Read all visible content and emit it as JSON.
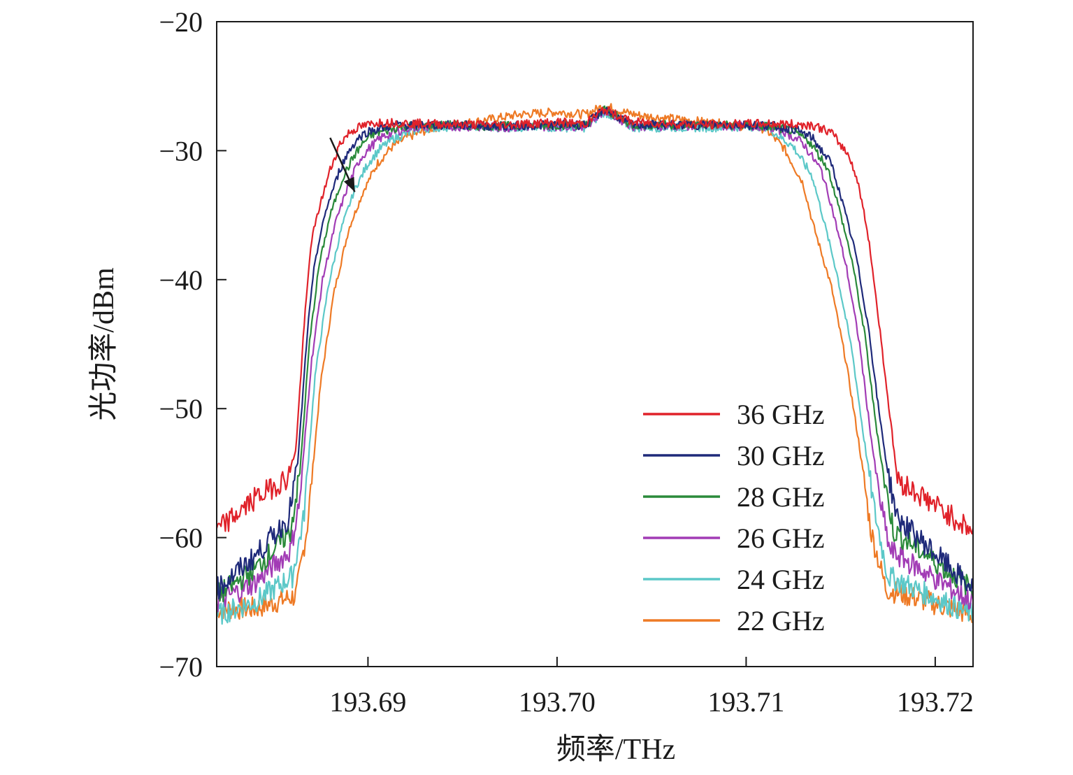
{
  "chart_data": {
    "type": "line",
    "title": "",
    "xlabel": "频率/THz",
    "ylabel": "光功率/dBm",
    "xlim": [
      193.682,
      193.722
    ],
    "ylim": [
      -70,
      -20
    ],
    "x_ticks": [
      193.69,
      193.7,
      193.71,
      193.72
    ],
    "x_tick_labels": [
      "193.69",
      "193.70",
      "193.71",
      "193.72"
    ],
    "y_ticks": [
      -70,
      -60,
      -50,
      -40,
      -30,
      -20
    ],
    "y_tick_labels": [
      "−70",
      "−60",
      "−50",
      "−40",
      "−30",
      "−20"
    ],
    "legend_position": "lower-right",
    "annotation": "arrow indicating decreasing bandwidth at the rising edge",
    "series": [
      {
        "name": "36 GHz",
        "color": "#e0222a",
        "x": [
          193.682,
          193.684,
          193.6858,
          193.6862,
          193.6866,
          193.687,
          193.6875,
          193.688,
          193.6885,
          193.689,
          193.6895,
          193.6905,
          193.6925,
          193.697,
          193.7,
          193.7015,
          193.7025,
          193.704,
          193.708,
          193.711,
          193.7135,
          193.7145,
          193.7155,
          193.716,
          193.7165,
          193.717,
          193.7174,
          193.7178,
          193.718,
          193.722
        ],
        "y": [
          -59.5,
          -57.0,
          -55.3,
          -53.0,
          -44.0,
          -37.0,
          -34.0,
          -31.5,
          -29.5,
          -28.6,
          -28.2,
          -27.8,
          -27.9,
          -28.0,
          -27.8,
          -27.9,
          -26.8,
          -27.8,
          -28.0,
          -27.9,
          -28.0,
          -28.6,
          -30.5,
          -33.0,
          -37.0,
          -43.0,
          -48.0,
          -53.0,
          -55.5,
          -59.5
        ]
      },
      {
        "name": "30 GHz",
        "color": "#1f2a7a",
        "x": [
          193.682,
          193.684,
          193.6858,
          193.6863,
          193.6868,
          193.6872,
          193.6878,
          193.6885,
          193.689,
          193.6895,
          193.69,
          193.6915,
          193.6935,
          193.697,
          193.7,
          193.7015,
          193.7025,
          193.704,
          193.708,
          193.711,
          193.7125,
          193.7135,
          193.7145,
          193.715,
          193.7158,
          193.7165,
          193.717,
          193.7175,
          193.718,
          193.722
        ],
        "y": [
          -64.0,
          -61.5,
          -58.5,
          -54.0,
          -44.0,
          -38.5,
          -34.5,
          -31.5,
          -30.0,
          -29.0,
          -28.5,
          -28.0,
          -28.0,
          -28.1,
          -28.0,
          -28.0,
          -26.8,
          -28.0,
          -28.0,
          -28.0,
          -28.3,
          -29.0,
          -31.0,
          -33.5,
          -38.0,
          -44.0,
          -50.0,
          -55.0,
          -58.5,
          -64.0
        ]
      },
      {
        "name": "28 GHz",
        "color": "#2a8a3a",
        "x": [
          193.682,
          193.684,
          193.6859,
          193.6864,
          193.6869,
          193.6874,
          193.688,
          193.6887,
          193.6893,
          193.6898,
          193.6903,
          193.6918,
          193.6938,
          193.697,
          193.7,
          193.7015,
          193.7025,
          193.704,
          193.708,
          193.711,
          193.7123,
          193.7133,
          193.7143,
          193.7148,
          193.7156,
          193.7163,
          193.7168,
          193.7173,
          193.7178,
          193.722
        ],
        "y": [
          -64.5,
          -62.5,
          -59.5,
          -55.0,
          -45.0,
          -39.0,
          -35.0,
          -32.0,
          -30.3,
          -29.3,
          -28.7,
          -28.1,
          -28.0,
          -28.1,
          -28.0,
          -28.0,
          -26.8,
          -28.0,
          -28.0,
          -28.1,
          -28.4,
          -29.2,
          -31.3,
          -33.8,
          -38.5,
          -44.5,
          -50.5,
          -55.5,
          -59.5,
          -64.0
        ]
      },
      {
        "name": "26 GHz",
        "color": "#a23cb5",
        "x": [
          193.682,
          193.684,
          193.6859,
          193.6864,
          193.687,
          193.6876,
          193.6883,
          193.689,
          193.6896,
          193.6902,
          193.6908,
          193.6922,
          193.6942,
          193.697,
          193.7,
          193.7015,
          193.7025,
          193.704,
          193.708,
          193.711,
          193.712,
          193.713,
          193.714,
          193.7145,
          193.7153,
          193.716,
          193.7165,
          193.717,
          193.7176,
          193.722
        ],
        "y": [
          -65.0,
          -63.5,
          -61.0,
          -57.0,
          -46.5,
          -40.0,
          -35.5,
          -32.5,
          -30.6,
          -29.6,
          -28.9,
          -28.2,
          -28.1,
          -28.2,
          -28.1,
          -28.1,
          -26.9,
          -28.1,
          -28.1,
          -28.1,
          -28.5,
          -29.4,
          -31.6,
          -34.2,
          -39.0,
          -45.0,
          -51.0,
          -56.5,
          -61.0,
          -65.0
        ]
      },
      {
        "name": "24 GHz",
        "color": "#5cc8c8",
        "x": [
          193.682,
          193.684,
          193.686,
          193.6866,
          193.6872,
          193.6879,
          193.6886,
          193.6893,
          193.69,
          193.6906,
          193.6913,
          193.6927,
          193.6947,
          193.697,
          193.7,
          193.7015,
          193.7025,
          193.704,
          193.708,
          193.711,
          193.7115,
          193.7125,
          193.7135,
          193.714,
          193.7148,
          193.7156,
          193.7162,
          193.7168,
          193.7175,
          193.722
        ],
        "y": [
          -66.0,
          -65.0,
          -63.0,
          -58.5,
          -47.5,
          -40.5,
          -36.0,
          -33.0,
          -31.0,
          -29.9,
          -29.1,
          -28.3,
          -28.1,
          -28.2,
          -28.2,
          -28.2,
          -27.0,
          -28.2,
          -28.2,
          -28.1,
          -28.6,
          -29.7,
          -32.0,
          -34.8,
          -39.5,
          -45.5,
          -52.0,
          -58.0,
          -63.0,
          -66.0
        ]
      },
      {
        "name": "22 GHz",
        "color": "#ee7a25",
        "x": [
          193.682,
          193.684,
          193.6862,
          193.6868,
          193.6875,
          193.6882,
          193.689,
          193.6898,
          193.6905,
          193.6912,
          193.692,
          193.6935,
          193.6955,
          193.698,
          193.7,
          193.7015,
          193.7025,
          193.7035,
          193.7045,
          193.708,
          193.711,
          193.712,
          193.713,
          193.7135,
          193.7145,
          193.7153,
          193.716,
          193.7166,
          193.7174,
          193.722
        ],
        "y": [
          -65.5,
          -65.5,
          -64.5,
          -59.0,
          -48.0,
          -41.0,
          -36.0,
          -33.0,
          -31.0,
          -29.8,
          -29.0,
          -28.2,
          -27.8,
          -27.2,
          -27.0,
          -27.2,
          -26.5,
          -27.0,
          -27.3,
          -27.8,
          -28.3,
          -29.8,
          -32.5,
          -35.5,
          -40.5,
          -46.5,
          -53.0,
          -59.5,
          -64.0,
          -66.0
        ]
      }
    ]
  }
}
